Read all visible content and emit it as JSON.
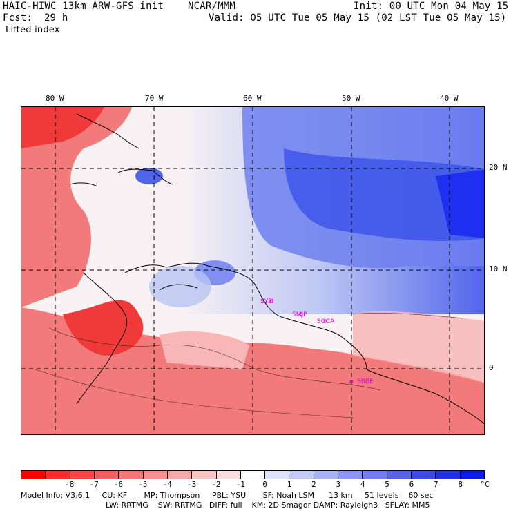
{
  "header": {
    "model_title": "HAIC-HIWC 13km ARW-GFS init",
    "org": "NCAR/MMM",
    "init": "Init: 00 UTC Mon 04 May 15",
    "fcst_label": "Fcst:",
    "fcst_value": "29 h",
    "valid": "Valid: 05 UTC Tue 05 May 15 (02 LST Tue 05 May 15)",
    "field_name": "Lifted index"
  },
  "map": {
    "longitude_labels": [
      "80 W",
      "70 W",
      "60 W",
      "50 W",
      "40 W"
    ],
    "latitude_labels": [
      "20 N",
      "10 N",
      "0"
    ],
    "stations": [
      "SYEI",
      "SMJP",
      "SOCA",
      "SBBE"
    ],
    "colors": {
      "strong_unstable": "#f03a3a",
      "unstable": "#f37a7a",
      "weak_unstable": "#f8b6b6",
      "neutral": "#f8f2f4",
      "weak_stable": "#b9c4f4",
      "stable": "#6e80ef",
      "strong_stable": "#3e55ea",
      "very_stable": "#1f2ff0"
    }
  },
  "colorbar": {
    "unit": "°C",
    "labels": [
      "-8",
      "-7",
      "-6",
      "-5",
      "-4",
      "-3",
      "-2",
      "-1",
      "0",
      "1",
      "2",
      "3",
      "4",
      "5",
      "6",
      "7",
      "8"
    ],
    "colors": [
      "#ff0000",
      "#ff2a2a",
      "#ff4444",
      "#f55e5e",
      "#f27878",
      "#f49090",
      "#f7aaaa",
      "#f9c4c4",
      "#fadede",
      "#ffffff",
      "#dfe2fb",
      "#c4caf7",
      "#a8b1f3",
      "#8d97f0",
      "#727ded",
      "#5764ea",
      "#3c4be8",
      "#2232e6",
      "#0a1be6"
    ]
  },
  "footer": {
    "line1": "Model Info: V3.6.1     CU: KF       MP: Thompson     PBL: YSU       SF: Noah LSM      13 km     51 levels    60 sec",
    "line2": "LW: RRTMG    SW: RRTMG   DIFF: full    KM: 2D Smagor DAMP: Rayleigh3   SFLAY: MM5"
  }
}
